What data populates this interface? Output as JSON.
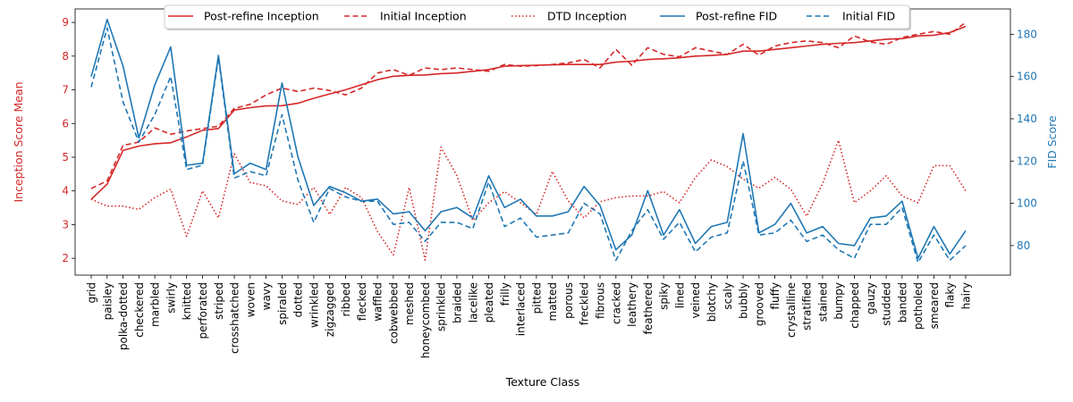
{
  "chart_data": {
    "type": "line",
    "title": "",
    "xlabel": "Texture Class",
    "ylabel_left": "Inception Score Mean",
    "ylabel_right": "FID Score",
    "ylim_left": [
      1.5,
      9.4
    ],
    "ylim_right": [
      66,
      192
    ],
    "yticks_left": [
      2,
      3,
      4,
      5,
      6,
      7,
      8,
      9
    ],
    "yticks_right": [
      80,
      100,
      120,
      140,
      160,
      180
    ],
    "colors": {
      "red": "#d62728",
      "blue": "#1f77b4"
    },
    "legend_position": "top-center",
    "categories": [
      "grid",
      "paisley",
      "polka-dotted",
      "checkered",
      "marbled",
      "swirly",
      "knitted",
      "perforated",
      "striped",
      "crosshatched",
      "woven",
      "wavy",
      "spiraled",
      "dotted",
      "wrinkled",
      "zigzagged",
      "ribbed",
      "flecked",
      "waffled",
      "cobwebbed",
      "meshed",
      "honeycombed",
      "sprinkled",
      "braided",
      "lacelike",
      "pleated",
      "frilly",
      "interlaced",
      "pitted",
      "matted",
      "porous",
      "freckled",
      "fibrous",
      "cracked",
      "leathery",
      "feathered",
      "spiky",
      "lined",
      "veined",
      "blotchy",
      "scaly",
      "bubbly",
      "grooved",
      "fluffy",
      "crystalline",
      "stratified",
      "stained",
      "bumpy",
      "chapped",
      "gauzy",
      "studded",
      "banded",
      "potholed",
      "smeared",
      "flaky",
      "hairy"
    ],
    "series": [
      {
        "name": "Post-refine Inception",
        "axis": "left",
        "color": "#d62728",
        "style": "solid",
        "values": [
          3.75,
          4.2,
          5.2,
          5.33,
          5.4,
          5.43,
          5.6,
          5.8,
          5.85,
          6.4,
          6.47,
          6.52,
          6.53,
          6.6,
          6.75,
          6.88,
          7.0,
          7.15,
          7.3,
          7.4,
          7.43,
          7.44,
          7.48,
          7.5,
          7.55,
          7.6,
          7.7,
          7.72,
          7.73,
          7.74,
          7.75,
          7.75,
          7.75,
          7.82,
          7.85,
          7.9,
          7.92,
          7.95,
          8.0,
          8.02,
          8.05,
          8.15,
          8.15,
          8.2,
          8.25,
          8.3,
          8.35,
          8.38,
          8.4,
          8.45,
          8.5,
          8.52,
          8.6,
          8.62,
          8.7,
          8.88
        ]
      },
      {
        "name": "Initial Inception",
        "axis": "left",
        "color": "#d62728",
        "style": "dashed",
        "values": [
          4.07,
          4.3,
          5.35,
          5.45,
          5.87,
          5.68,
          5.78,
          5.85,
          5.92,
          6.45,
          6.57,
          6.85,
          7.05,
          6.95,
          7.05,
          6.98,
          6.85,
          7.05,
          7.5,
          7.6,
          7.43,
          7.65,
          7.6,
          7.65,
          7.6,
          7.55,
          7.75,
          7.7,
          7.72,
          7.75,
          7.8,
          7.9,
          7.65,
          8.2,
          7.73,
          8.25,
          8.05,
          7.98,
          8.25,
          8.15,
          8.05,
          8.35,
          8.03,
          8.3,
          8.4,
          8.45,
          8.4,
          8.25,
          8.6,
          8.42,
          8.35,
          8.55,
          8.65,
          8.73,
          8.65,
          9.0
        ]
      },
      {
        "name": "DTD Inception",
        "axis": "left",
        "color": "#d62728",
        "style": "dotted",
        "values": [
          3.75,
          3.55,
          3.55,
          3.45,
          3.8,
          4.05,
          2.65,
          4.0,
          3.2,
          5.1,
          4.25,
          4.15,
          3.7,
          3.6,
          4.1,
          3.3,
          4.1,
          3.8,
          2.8,
          2.1,
          4.1,
          1.95,
          5.3,
          4.45,
          3.12,
          3.65,
          3.98,
          3.65,
          3.3,
          4.58,
          3.7,
          3.2,
          3.68,
          3.8,
          3.85,
          3.85,
          3.98,
          3.65,
          4.4,
          4.92,
          4.72,
          4.35,
          4.08,
          4.4,
          4.05,
          3.25,
          4.22,
          5.5,
          3.65,
          4.0,
          4.45,
          3.85,
          3.65,
          4.75,
          4.75,
          4.0
        ]
      },
      {
        "name": "Post-refine FID",
        "axis": "right",
        "color": "#1f77b4",
        "style": "solid",
        "values": [
          160,
          187,
          165,
          131,
          156,
          174,
          118,
          119,
          170,
          114,
          119,
          116,
          157,
          122,
          99,
          108,
          105,
          101,
          102,
          95,
          96,
          87,
          96,
          98,
          93,
          113,
          98,
          102,
          94,
          94,
          96,
          108,
          99,
          78,
          85,
          106,
          85,
          97,
          81,
          89,
          91,
          133,
          86,
          90,
          100,
          86,
          89,
          81,
          80,
          93,
          94,
          101,
          74,
          89,
          76,
          87
        ]
      },
      {
        "name": "Initial FID",
        "axis": "right",
        "color": "#1f77b4",
        "style": "dashed",
        "values": [
          155,
          183,
          148,
          129,
          142,
          160,
          116,
          118,
          169,
          112,
          115,
          113,
          142,
          111,
          91,
          107,
          103,
          101,
          101,
          90,
          91,
          82,
          91,
          91,
          88,
          110,
          89,
          93,
          84,
          85,
          86,
          100,
          95,
          73,
          87,
          97,
          83,
          91,
          77,
          84,
          86,
          120,
          85,
          86,
          92,
          82,
          85,
          78,
          74,
          90,
          90,
          98,
          72,
          85,
          73,
          80
        ]
      }
    ]
  }
}
